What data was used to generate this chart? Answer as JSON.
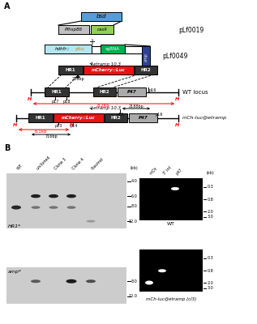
{
  "panel_A_label": "A",
  "panel_B_label": "B",
  "pLf0019_label": "pLf0019",
  "pLf0049_label": "pLf0049",
  "wt_locus_label": "WT locus",
  "mch_luc_label": "mCh-luc@etramp",
  "bsd_color": "#5b9bd5",
  "pfhsp86_color": "#c0c0c0",
  "cas9_color": "#92d050",
  "hdhfr_color": "#b3e6f0",
  "sgrna_color": "#00b050",
  "amp_color": "#2e4099",
  "mcherry_color": "#ee1111",
  "hr1_color": "#333333",
  "hr2_color": "#333333",
  "p47_color": "#aaaaaa",
  "background_color": "#ffffff",
  "red": "#ff0000",
  "black": "#000000",
  "white": "#ffffff"
}
